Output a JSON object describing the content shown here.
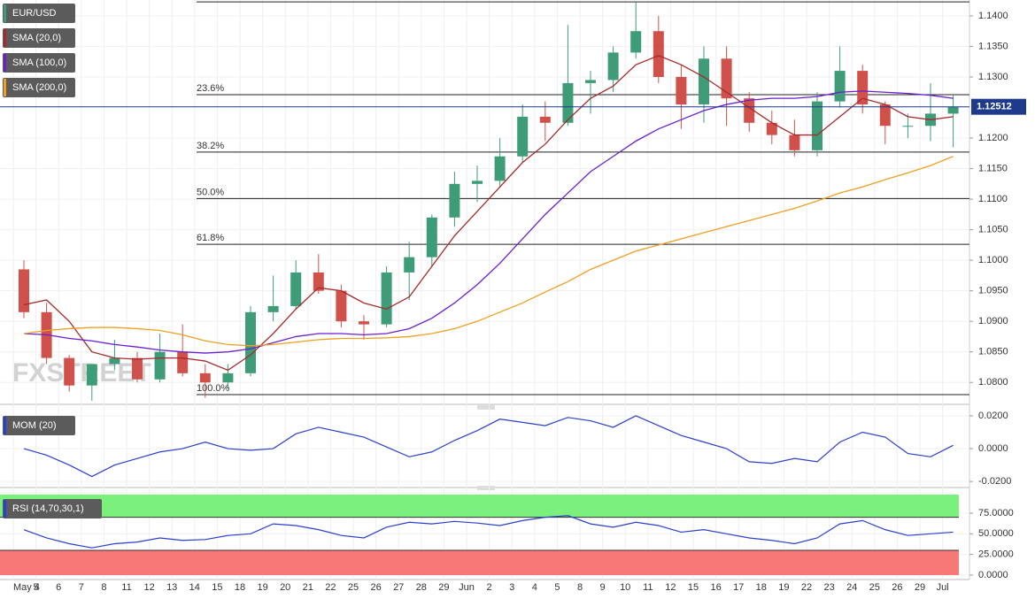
{
  "chart_data": [
    {
      "type": "candlestick",
      "name": "EUR/USD",
      "legend_color": "#3e9c78",
      "watermark": "FXSTREET",
      "categories": [
        "May 4",
        "5",
        "6",
        "7",
        "8",
        "11",
        "12",
        "13",
        "14",
        "15",
        "18",
        "19",
        "20",
        "21",
        "22",
        "25",
        "26",
        "27",
        "28",
        "29",
        "Jun",
        "2",
        "3",
        "4",
        "5",
        "8",
        "9",
        "10",
        "11",
        "12",
        "15",
        "16",
        "17",
        "18",
        "19",
        "22",
        "23",
        "24",
        "25",
        "26",
        "29",
        "Jul"
      ],
      "open": [
        1.0985,
        1.0915,
        1.084,
        1.0795,
        1.083,
        1.084,
        1.0805,
        1.085,
        1.0815,
        1.08,
        1.0815,
        1.0915,
        1.0925,
        1.098,
        1.095,
        1.09,
        1.0895,
        1.098,
        1.1005,
        1.107,
        1.1125,
        1.113,
        1.117,
        1.1235,
        1.1225,
        1.129,
        1.1295,
        1.134,
        1.1375,
        1.13,
        1.1255,
        1.133,
        1.1265,
        1.1225,
        1.1205,
        1.118,
        1.126,
        1.131,
        1.1255,
        1.122,
        1.122,
        1.124
      ],
      "high": [
        1.1,
        1.093,
        1.0845,
        1.083,
        1.087,
        1.085,
        1.088,
        1.0895,
        1.083,
        1.083,
        1.0925,
        1.0975,
        1.1,
        1.101,
        1.096,
        1.091,
        1.099,
        1.103,
        1.1075,
        1.1145,
        1.1155,
        1.12,
        1.1255,
        1.126,
        1.1385,
        1.131,
        1.135,
        1.1422,
        1.14,
        1.132,
        1.135,
        1.135,
        1.1275,
        1.1245,
        1.123,
        1.1275,
        1.135,
        1.132,
        1.126,
        1.124,
        1.129,
        1.127
      ],
      "low": [
        1.0905,
        1.083,
        1.0785,
        1.077,
        1.082,
        1.08,
        1.08,
        1.081,
        1.0775,
        1.079,
        1.081,
        1.09,
        1.092,
        1.0945,
        1.089,
        1.087,
        1.089,
        1.0935,
        1.099,
        1.1055,
        1.1095,
        1.112,
        1.116,
        1.1195,
        1.122,
        1.124,
        1.1275,
        1.133,
        1.129,
        1.1215,
        1.1225,
        1.122,
        1.121,
        1.119,
        1.117,
        1.117,
        1.125,
        1.124,
        1.119,
        1.12,
        1.1195,
        1.1185
      ],
      "close": [
        1.0915,
        1.084,
        1.0795,
        1.083,
        1.084,
        1.0805,
        1.085,
        1.0815,
        1.08,
        1.0815,
        1.0915,
        1.0925,
        1.098,
        1.095,
        1.09,
        1.0895,
        1.098,
        1.1005,
        1.107,
        1.1125,
        1.113,
        1.117,
        1.1235,
        1.1225,
        1.129,
        1.1295,
        1.134,
        1.1375,
        1.13,
        1.1255,
        1.133,
        1.1265,
        1.1225,
        1.1205,
        1.118,
        1.126,
        1.131,
        1.1255,
        1.122,
        1.122,
        1.124,
        1.12512
      ],
      "up_color": "#3e9c78",
      "down_color": "#d0514b",
      "series": [
        {
          "name": "SMA (20,0)",
          "color": "#a52a2a",
          "values": [
            1.0927,
            1.0935,
            1.09,
            1.085,
            1.084,
            1.0838,
            1.084,
            1.084,
            1.0835,
            1.082,
            1.0845,
            1.088,
            1.092,
            1.0955,
            1.095,
            1.093,
            1.092,
            1.094,
            1.099,
            1.104,
            1.108,
            1.112,
            1.116,
            1.119,
            1.123,
            1.1265,
            1.1285,
            1.132,
            1.1335,
            1.132,
            1.13,
            1.1275,
            1.125,
            1.1225,
            1.1205,
            1.1205,
            1.1235,
            1.1265,
            1.1255,
            1.1235,
            1.123,
            1.1235
          ]
        },
        {
          "name": "SMA (100,0)",
          "color": "#6a1fd0",
          "values": [
            1.088,
            1.0878,
            1.0872,
            1.0868,
            1.0862,
            1.0858,
            1.0853,
            1.085,
            1.0848,
            1.085,
            1.0855,
            1.0865,
            1.0875,
            1.088,
            1.088,
            1.0878,
            1.088,
            1.0888,
            1.0905,
            1.093,
            1.096,
            1.0995,
            1.1035,
            1.1075,
            1.111,
            1.1145,
            1.117,
            1.1195,
            1.1215,
            1.123,
            1.1245,
            1.1255,
            1.1262,
            1.1265,
            1.1265,
            1.1268,
            1.1275,
            1.1277,
            1.1275,
            1.1273,
            1.127,
            1.1265
          ]
        },
        {
          "name": "SMA (200,0)",
          "color": "#f0a020",
          "values": [
            1.088,
            1.0885,
            1.0888,
            1.089,
            1.089,
            1.0888,
            1.0885,
            1.0878,
            1.0868,
            1.0862,
            1.086,
            1.0862,
            1.0866,
            1.087,
            1.0872,
            1.0872,
            1.0873,
            1.0875,
            1.088,
            1.0888,
            1.09,
            1.0915,
            1.093,
            1.0948,
            1.0965,
            1.0985,
            1.1,
            1.1015,
            1.1025,
            1.1035,
            1.1045,
            1.1055,
            1.1065,
            1.1075,
            1.1085,
            1.1097,
            1.111,
            1.112,
            1.1132,
            1.1143,
            1.1155,
            1.117
          ]
        }
      ],
      "fib_high": 1.1423,
      "fib_levels": [
        {
          "value": 1.1271,
          "label": "23.6%"
        },
        {
          "value": 1.1177,
          "label": "38.2%"
        },
        {
          "value": 1.1101,
          "label": "50.0%"
        },
        {
          "value": 1.1026,
          "label": "61.8%"
        },
        {
          "value": 1.078,
          "label": "100.0%"
        }
      ],
      "current_price": 1.12512,
      "current_color": "#1f3a8a",
      "ylim": [
        1.0767,
        1.1426
      ],
      "yticks": [
        {
          "value": 1.08,
          "label": "1.0800"
        },
        {
          "value": 1.085,
          "label": "1.0850"
        },
        {
          "value": 1.09,
          "label": "1.0900"
        },
        {
          "value": 1.095,
          "label": "1.0950"
        },
        {
          "value": 1.1,
          "label": "1.1000"
        },
        {
          "value": 1.105,
          "label": "1.1050"
        },
        {
          "value": 1.11,
          "label": "1.1100"
        },
        {
          "value": 1.115,
          "label": "1.1150"
        },
        {
          "value": 1.12,
          "label": "1.1200"
        },
        {
          "value": 1.13,
          "label": "1.1300"
        },
        {
          "value": 1.135,
          "label": "1.1350"
        },
        {
          "value": 1.14,
          "label": "1.1400"
        }
      ]
    },
    {
      "type": "line",
      "name": "MOM (20)",
      "color": "#2a3fcf",
      "values": [
        0,
        -0.004,
        -0.01,
        -0.017,
        -0.01,
        -0.006,
        -0.002,
        0,
        0.004,
        0,
        -0.001,
        0,
        0.009,
        0.013,
        0.01,
        0.007,
        0.001,
        -0.005,
        -0.002,
        0.005,
        0.011,
        0.018,
        0.016,
        0.014,
        0.019,
        0.017,
        0.013,
        0.02,
        0.014,
        0.008,
        0.004,
        0,
        -0.008,
        -0.009,
        -0.006,
        -0.008,
        0.004,
        0.01,
        0.007,
        -0.003,
        -0.005,
        0.002
      ],
      "ylim": [
        -0.0221,
        0.0243
      ],
      "yticks": [
        {
          "value": -0.02,
          "label": "-0.0200"
        },
        {
          "value": 0,
          "label": "0.0000"
        },
        {
          "value": 0.02,
          "label": "0.0200"
        }
      ]
    },
    {
      "type": "line",
      "name": "RSI (14,70,30,1)",
      "color": "#2a3fcf",
      "values": [
        55,
        45,
        38,
        33,
        38,
        40,
        45,
        42,
        43,
        48,
        50,
        62,
        60,
        55,
        48,
        45,
        58,
        64,
        62,
        65,
        63,
        60,
        66,
        70,
        72,
        62,
        58,
        64,
        60,
        52,
        55,
        50,
        45,
        42,
        38,
        45,
        62,
        66,
        55,
        48,
        50,
        52
      ],
      "overbought": 70,
      "oversold": 30,
      "overbought_color": "#7cf07c",
      "oversold_color": "#f87878",
      "ylim": [
        -5.4,
        100.7
      ],
      "yticks": [
        {
          "value": 0,
          "label": "0.0000"
        },
        {
          "value": 25,
          "label": "25.0000"
        },
        {
          "value": 50,
          "label": "50.0000"
        },
        {
          "value": 75,
          "label": "75.0000"
        }
      ]
    }
  ]
}
